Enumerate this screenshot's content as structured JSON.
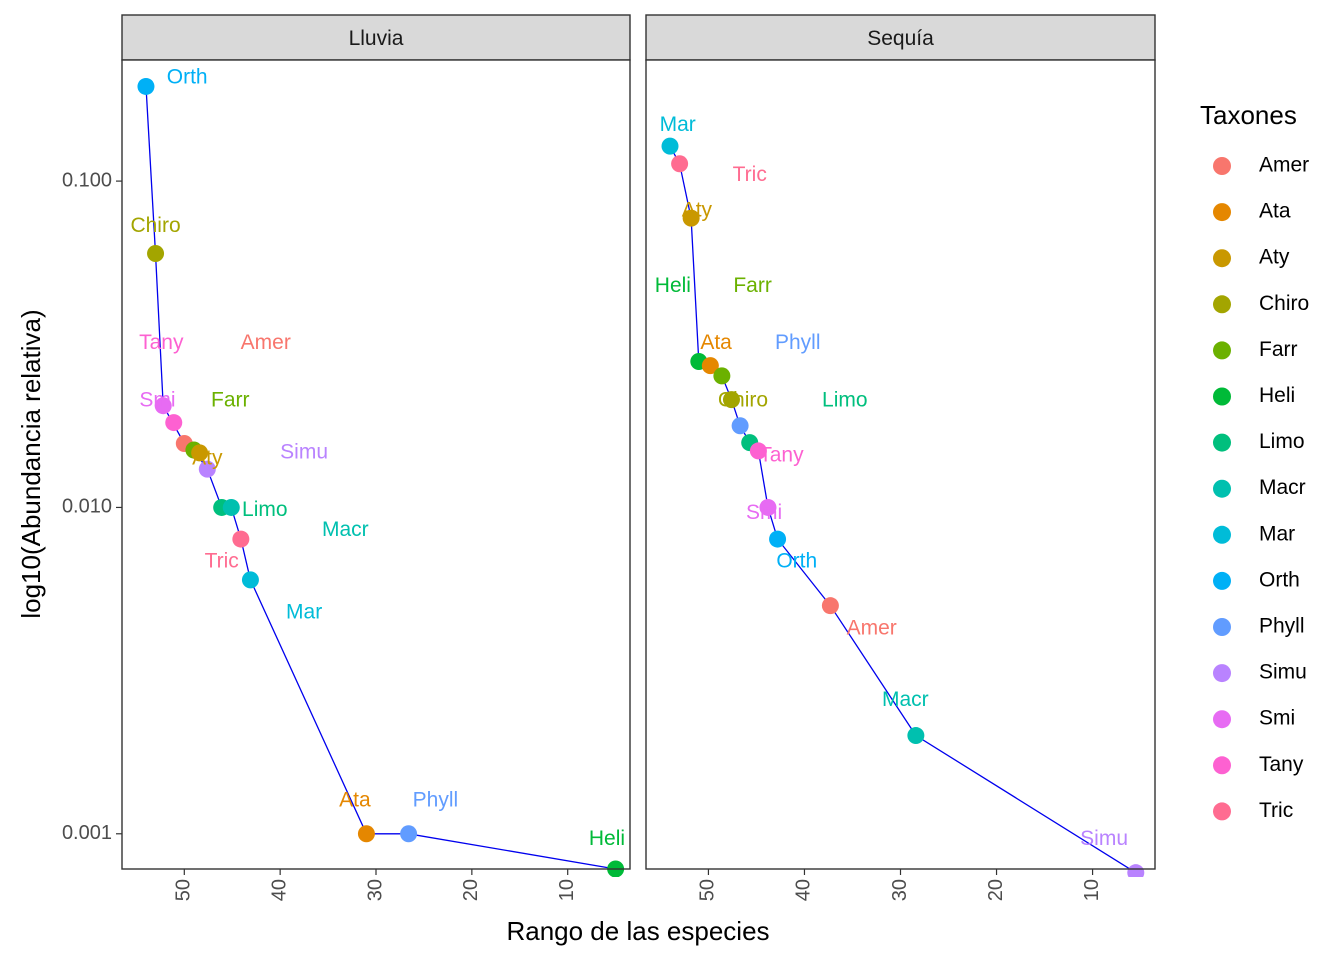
{
  "chart_data": {
    "type": "scatter",
    "xlabel": "Rango de las especies",
    "ylabel": "log10(Abundancia relativa)",
    "x_reversed": true,
    "y_scale": "log10",
    "xlim": [
      56.5,
      3.5
    ],
    "ylim": [
      0.00078,
      0.235
    ],
    "x_ticks": [
      50,
      40,
      30,
      20,
      10
    ],
    "y_ticks": [
      0.1,
      0.01,
      0.001
    ],
    "y_tick_labels": [
      "0.100",
      "0.010",
      "0.001"
    ],
    "grid": false,
    "line_color": "#0000ee",
    "legend": {
      "title": "Taxones",
      "position": "right",
      "items": [
        {
          "name": "Amer",
          "color": "#F8766D"
        },
        {
          "name": "Ata",
          "color": "#E58700"
        },
        {
          "name": "Aty",
          "color": "#C99800"
        },
        {
          "name": "Chiro",
          "color": "#A3A500"
        },
        {
          "name": "Farr",
          "color": "#6BB100"
        },
        {
          "name": "Heli",
          "color": "#00BA38"
        },
        {
          "name": "Limo",
          "color": "#00BF7D"
        },
        {
          "name": "Macr",
          "color": "#00C0AF"
        },
        {
          "name": "Mar",
          "color": "#00BCD8"
        },
        {
          "name": "Orth",
          "color": "#00B0F6"
        },
        {
          "name": "Phyll",
          "color": "#619CFF"
        },
        {
          "name": "Simu",
          "color": "#B983FF"
        },
        {
          "name": "Smi",
          "color": "#E76BF3"
        },
        {
          "name": "Tany",
          "color": "#FD61D1"
        },
        {
          "name": "Tric",
          "color": "#FF6C91"
        }
      ]
    },
    "panels": [
      {
        "name": "Lluvia",
        "line": [
          [
            54,
            0.195
          ],
          [
            53,
            0.06
          ],
          [
            52.2,
            0.0205
          ],
          [
            50,
            0.0157
          ],
          [
            49,
            0.015
          ],
          [
            47.6,
            0.0131
          ],
          [
            46.1,
            0.01
          ],
          [
            45.1,
            0.01
          ],
          [
            44.1,
            0.008
          ],
          [
            43.1,
            0.006
          ],
          [
            31,
            0.001
          ],
          [
            26.6,
            0.001
          ],
          [
            5,
            0.00078
          ]
        ],
        "points": [
          {
            "taxon": "Orth",
            "x": 54,
            "y": 0.195
          },
          {
            "taxon": "Chiro",
            "x": 53,
            "y": 0.06
          },
          {
            "taxon": "Smi",
            "x": 52.2,
            "y": 0.0205
          },
          {
            "taxon": "Tany",
            "x": 51.1,
            "y": 0.0182
          },
          {
            "taxon": "Amer",
            "x": 50,
            "y": 0.0157
          },
          {
            "taxon": "Farr",
            "x": 49,
            "y": 0.015
          },
          {
            "taxon": "Aty",
            "x": 48.4,
            "y": 0.0147
          },
          {
            "taxon": "Simu",
            "x": 47.6,
            "y": 0.0131
          },
          {
            "taxon": "Limo",
            "x": 46.1,
            "y": 0.01
          },
          {
            "taxon": "Macr",
            "x": 45.1,
            "y": 0.01
          },
          {
            "taxon": "Tric",
            "x": 44.1,
            "y": 0.008
          },
          {
            "taxon": "Mar",
            "x": 43.1,
            "y": 0.006
          },
          {
            "taxon": "Ata",
            "x": 31,
            "y": 0.001
          },
          {
            "taxon": "Phyll",
            "x": 26.6,
            "y": 0.001
          },
          {
            "taxon": "Heli",
            "x": 5,
            "y": 0.00078
          }
        ],
        "labels": [
          {
            "text": "Orth",
            "taxon": "Orth",
            "x": 49.7,
            "y": 0.207
          },
          {
            "text": "Chiro",
            "taxon": "Chiro",
            "x": 53,
            "y": 0.0725
          },
          {
            "text": "Tany",
            "taxon": "Tany",
            "x": 52.4,
            "y": 0.0318
          },
          {
            "text": "Amer",
            "taxon": "Amer",
            "x": 41.5,
            "y": 0.0318
          },
          {
            "text": "Smi",
            "taxon": "Smi",
            "x": 52.8,
            "y": 0.0212
          },
          {
            "text": "Farr",
            "taxon": "Farr",
            "x": 45.2,
            "y": 0.0212
          },
          {
            "text": "Aty",
            "taxon": "Aty",
            "x": 47.6,
            "y": 0.0141
          },
          {
            "text": "Simu",
            "taxon": "Simu",
            "x": 37.5,
            "y": 0.0147
          },
          {
            "text": "Limo",
            "taxon": "Limo",
            "x": 41.6,
            "y": 0.0098
          },
          {
            "text": "Macr",
            "taxon": "Macr",
            "x": 33.2,
            "y": 0.0085
          },
          {
            "text": "Tric",
            "taxon": "Tric",
            "x": 46.1,
            "y": 0.0068
          },
          {
            "text": "Mar",
            "taxon": "Mar",
            "x": 37.5,
            "y": 0.00475
          },
          {
            "text": "Ata",
            "taxon": "Ata",
            "x": 32.2,
            "y": 0.00126
          },
          {
            "text": "Phyll",
            "taxon": "Phyll",
            "x": 23.8,
            "y": 0.00126
          },
          {
            "text": "Heli",
            "taxon": "Heli",
            "x": 5.9,
            "y": 0.00096
          }
        ]
      },
      {
        "name": "Sequía",
        "line": [
          [
            54,
            0.128
          ],
          [
            53,
            0.113
          ],
          [
            51.8,
            0.077
          ],
          [
            51,
            0.028
          ],
          [
            48.6,
            0.0253
          ],
          [
            47.6,
            0.0214
          ],
          [
            46.7,
            0.0178
          ],
          [
            45.7,
            0.0158
          ],
          [
            44.8,
            0.0149
          ],
          [
            43.8,
            0.01
          ],
          [
            42.8,
            0.008
          ],
          [
            37.3,
            0.005
          ],
          [
            28.4,
            0.002
          ],
          [
            5.5,
            0.00076
          ]
        ],
        "points": [
          {
            "taxon": "Mar",
            "x": 54,
            "y": 0.128
          },
          {
            "taxon": "Tric",
            "x": 53,
            "y": 0.113
          },
          {
            "taxon": "Aty",
            "x": 51.8,
            "y": 0.077
          },
          {
            "taxon": "Heli",
            "x": 51,
            "y": 0.028
          },
          {
            "taxon": "Ata",
            "x": 49.8,
            "y": 0.0272
          },
          {
            "taxon": "Farr",
            "x": 48.6,
            "y": 0.0253
          },
          {
            "taxon": "Chiro",
            "x": 47.6,
            "y": 0.0214
          },
          {
            "taxon": "Phyll",
            "x": 46.7,
            "y": 0.0178
          },
          {
            "taxon": "Limo",
            "x": 45.7,
            "y": 0.0158
          },
          {
            "taxon": "Tany",
            "x": 44.8,
            "y": 0.0149
          },
          {
            "taxon": "Smi",
            "x": 43.8,
            "y": 0.01
          },
          {
            "taxon": "Orth",
            "x": 42.8,
            "y": 0.008
          },
          {
            "taxon": "Amer",
            "x": 37.3,
            "y": 0.005
          },
          {
            "taxon": "Macr",
            "x": 28.4,
            "y": 0.002
          },
          {
            "taxon": "Simu",
            "x": 5.5,
            "y": 0.00076
          }
        ],
        "labels": [
          {
            "text": "Mar",
            "taxon": "Mar",
            "x": 53.2,
            "y": 0.148
          },
          {
            "text": "Tric",
            "taxon": "Tric",
            "x": 45.7,
            "y": 0.104
          },
          {
            "text": "Aty",
            "taxon": "Aty",
            "x": 51.2,
            "y": 0.081
          },
          {
            "text": "Heli",
            "taxon": "Heli",
            "x": 53.7,
            "y": 0.0475
          },
          {
            "text": "Farr",
            "taxon": "Farr",
            "x": 45.4,
            "y": 0.0475
          },
          {
            "text": "Ata",
            "taxon": "Ata",
            "x": 49.2,
            "y": 0.0318
          },
          {
            "text": "Phyll",
            "taxon": "Phyll",
            "x": 40.7,
            "y": 0.0318
          },
          {
            "text": "Chiro",
            "taxon": "Chiro",
            "x": 46.4,
            "y": 0.0212
          },
          {
            "text": "Limo",
            "taxon": "Limo",
            "x": 35.8,
            "y": 0.0212
          },
          {
            "text": "Tany",
            "taxon": "Tany",
            "x": 42.4,
            "y": 0.0144
          },
          {
            "text": "Smi",
            "taxon": "Smi",
            "x": 44.2,
            "y": 0.0096
          },
          {
            "text": "Orth",
            "taxon": "Orth",
            "x": 40.8,
            "y": 0.0068
          },
          {
            "text": "Amer",
            "taxon": "Amer",
            "x": 33,
            "y": 0.00425
          },
          {
            "text": "Macr",
            "taxon": "Macr",
            "x": 29.5,
            "y": 0.00256
          },
          {
            "text": "Simu",
            "taxon": "Simu",
            "x": 8.8,
            "y": 0.00096
          }
        ]
      }
    ]
  }
}
